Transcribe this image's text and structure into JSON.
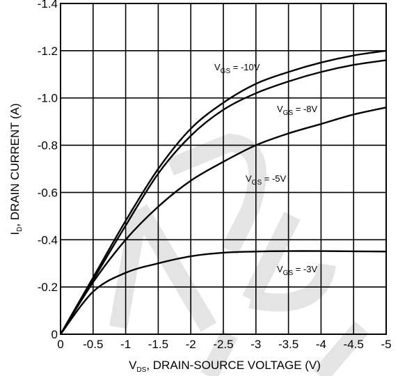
{
  "chart_data": {
    "type": "line",
    "x_tick_labels": [
      "0",
      "-0.5",
      "-1",
      "-1.5",
      "-2",
      "-2.5",
      "-3",
      "-3.5",
      "-4",
      "-4.5",
      "-5"
    ],
    "y_tick_labels": [
      "0",
      "-0.2",
      "-0.4",
      "-0.6",
      "-0.8",
      "-1.0",
      "-1.2",
      "-1.4"
    ],
    "xlim": [
      0,
      -5
    ],
    "ylim": [
      0,
      -1.4
    ],
    "grid": true,
    "xlabel": {
      "main": "V",
      "sub": "DS",
      "rest": ", DRAIN-SOURCE VOLTAGE (V)"
    },
    "ylabel": {
      "main": "I",
      "sub": "D",
      "rest": ", DRAIN CURRENT (A)"
    },
    "series": [
      {
        "label": {
          "main": "V",
          "sub": "GS",
          "rest": " = -10V"
        },
        "x": [
          0,
          -0.5,
          -1,
          -1.5,
          -2,
          -2.5,
          -3,
          -3.5,
          -4,
          -4.5,
          -5
        ],
        "y": [
          0,
          -0.24,
          -0.48,
          -0.7,
          -0.87,
          -0.98,
          -1.06,
          -1.11,
          -1.15,
          -1.18,
          -1.2
        ]
      },
      {
        "label": {
          "main": "V",
          "sub": "GS",
          "rest": " = -8V"
        },
        "x": [
          0,
          -0.5,
          -1,
          -1.5,
          -2,
          -2.5,
          -3,
          -3.5,
          -4,
          -4.5,
          -5
        ],
        "y": [
          0,
          -0.23,
          -0.46,
          -0.68,
          -0.84,
          -0.95,
          -1.02,
          -1.07,
          -1.11,
          -1.14,
          -1.16
        ]
      },
      {
        "label": {
          "main": "V",
          "sub": "GS",
          "rest": " = -5V"
        },
        "x": [
          0,
          -0.5,
          -1,
          -1.5,
          -2,
          -2.5,
          -3,
          -3.5,
          -4,
          -4.5,
          -5
        ],
        "y": [
          0,
          -0.22,
          -0.4,
          -0.54,
          -0.65,
          -0.73,
          -0.8,
          -0.85,
          -0.89,
          -0.93,
          -0.96
        ]
      },
      {
        "label": {
          "main": "V",
          "sub": "GS",
          "rest": " = -3V"
        },
        "x": [
          0,
          -0.5,
          -1,
          -1.5,
          -2,
          -2.5,
          -3,
          -3.5,
          -4,
          -4.5,
          -5
        ],
        "y": [
          0,
          -0.18,
          -0.26,
          -0.3,
          -0.33,
          -0.345,
          -0.35,
          -0.352,
          -0.352,
          -0.351,
          -0.35
        ]
      }
    ]
  }
}
